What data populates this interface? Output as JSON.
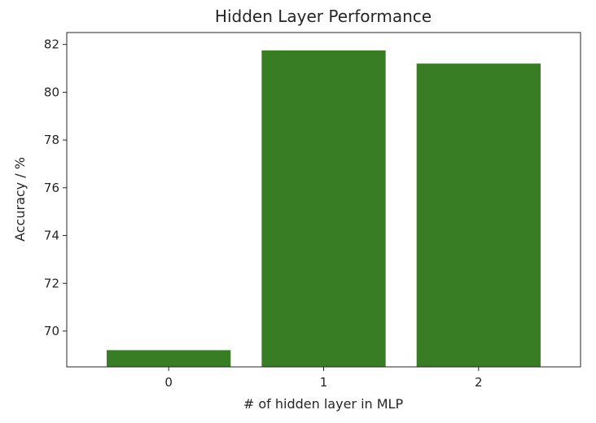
{
  "chart_data": {
    "type": "bar",
    "title": "Hidden Layer Performance",
    "xlabel": "# of hidden layer in MLP",
    "ylabel": "Accuracy / %",
    "categories": [
      "0",
      "1",
      "2"
    ],
    "values": [
      69.2,
      81.75,
      81.2
    ],
    "ylim": [
      68.5,
      82.5
    ],
    "yticks": [
      70,
      72,
      74,
      76,
      78,
      80,
      82
    ],
    "ytick_labels": [
      "70",
      "72",
      "74",
      "76",
      "78",
      "80",
      "82"
    ],
    "grid": false,
    "bar_color": "#387c23"
  }
}
